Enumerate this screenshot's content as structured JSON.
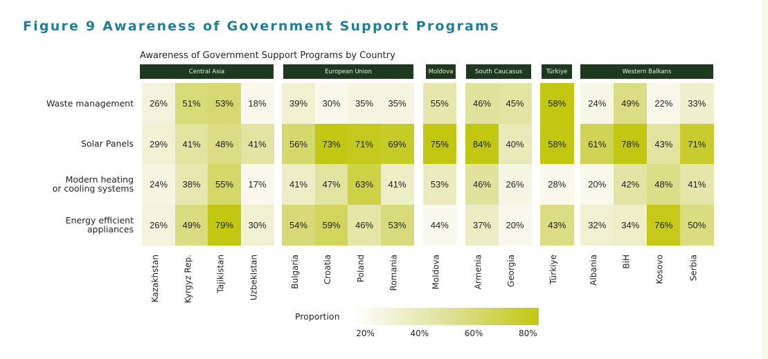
{
  "figure_title": "Figure 9 Awareness of Government Support Programs",
  "chart_data": {
    "type": "heatmap",
    "title": "Awareness of Government Support Programs by Country",
    "rows": [
      "Waste management",
      "Solar Panels",
      "Modern heating or cooling systems",
      "Energy efficient appliances"
    ],
    "row_labels_display": [
      [
        "Waste management"
      ],
      [
        "Solar Panels"
      ],
      [
        "Modern heating",
        "or cooling systems"
      ],
      [
        "Energy efficient",
        "appliances"
      ]
    ],
    "groups": [
      {
        "name": "Central Asia",
        "countries": [
          "Kazakhstan",
          "Kyrgyz Rep.",
          "Tajikistan",
          "Uzbekistan"
        ],
        "values": [
          [
            26,
            51,
            53,
            18
          ],
          [
            29,
            41,
            48,
            41
          ],
          [
            24,
            38,
            55,
            17
          ],
          [
            26,
            49,
            79,
            30
          ]
        ]
      },
      {
        "name": "European Union",
        "countries": [
          "Bulgaria",
          "Croatia",
          "Poland",
          "Romania"
        ],
        "values": [
          [
            39,
            30,
            35,
            35
          ],
          [
            56,
            73,
            71,
            69
          ],
          [
            41,
            47,
            63,
            41
          ],
          [
            54,
            59,
            46,
            53
          ]
        ]
      },
      {
        "name": "Moldova",
        "countries": [
          "Moldova"
        ],
        "values": [
          [
            55
          ],
          [
            75
          ],
          [
            53
          ],
          [
            44
          ]
        ]
      },
      {
        "name": "South Caucasus",
        "countries": [
          "Armenia",
          "Georgia"
        ],
        "values": [
          [
            46,
            45
          ],
          [
            84,
            40
          ],
          [
            46,
            26
          ],
          [
            37,
            20
          ]
        ]
      },
      {
        "name": "Türkiye",
        "countries": [
          "Türkiye"
        ],
        "values": [
          [
            58
          ],
          [
            58
          ],
          [
            28
          ],
          [
            43
          ]
        ]
      },
      {
        "name": "Western Balkans",
        "countries": [
          "Albania",
          "BiH",
          "Kosovo",
          "Serbia"
        ],
        "values": [
          [
            24,
            49,
            22,
            33
          ],
          [
            61,
            78,
            43,
            71
          ],
          [
            20,
            42,
            48,
            41
          ],
          [
            32,
            34,
            76,
            50
          ]
        ]
      }
    ],
    "value_suffix": "%",
    "legend": {
      "title": "Proportion",
      "ticks": [
        "20%",
        "40%",
        "60%",
        "80%"
      ],
      "tick_values": [
        20,
        40,
        60,
        80
      ],
      "range": [
        15,
        84
      ],
      "placement": "bottom"
    },
    "colors": {
      "low": "#f8f8ec",
      "mid": "#dcdf8e",
      "high": "#c2c712"
    }
  },
  "colors": {
    "title": "#1f7f95",
    "header_band": "#1e3a1e"
  }
}
